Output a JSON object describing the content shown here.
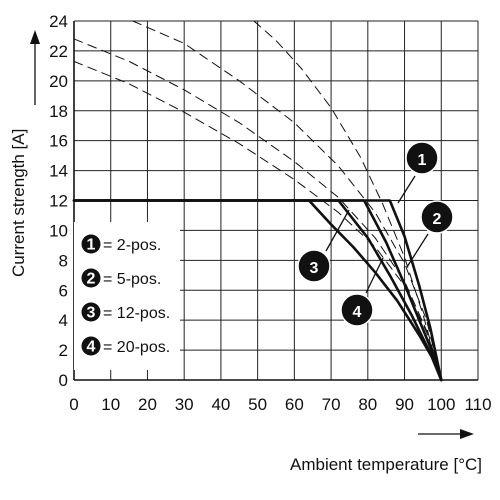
{
  "chart_data": {
    "type": "line",
    "xlabel": "Ambient temperature [°C]",
    "ylabel": "Current strength [A]",
    "xlim": [
      0,
      110
    ],
    "ylim": [
      0,
      24
    ],
    "x_ticks": [
      0,
      10,
      20,
      30,
      40,
      50,
      60,
      70,
      80,
      90,
      100,
      110
    ],
    "y_ticks": [
      0,
      2,
      4,
      6,
      8,
      10,
      12,
      14,
      16,
      18,
      20,
      22,
      24
    ],
    "grid": true,
    "legend": {
      "placement": "left-center",
      "entries": [
        {
          "badge": "1",
          "label": "= 2-pos."
        },
        {
          "badge": "2",
          "label": "= 5-pos."
        },
        {
          "badge": "3",
          "label": "= 12-pos."
        },
        {
          "badge": "4",
          "label": "= 20-pos."
        }
      ]
    },
    "series": [
      {
        "badge": "1",
        "style": "solid",
        "x": [
          0,
          86,
          90,
          94,
          97,
          100
        ],
        "y": [
          12,
          12,
          9.6,
          6.3,
          3.5,
          0
        ]
      },
      {
        "badge": "2",
        "style": "solid",
        "x": [
          0,
          79,
          85,
          90,
          95,
          98,
          100
        ],
        "y": [
          12,
          12,
          9.2,
          6.4,
          3.4,
          1.6,
          0
        ]
      },
      {
        "badge": "3",
        "style": "solid",
        "x": [
          0,
          72,
          80,
          86,
          92,
          97,
          100
        ],
        "y": [
          12,
          12,
          9.5,
          7.0,
          4.3,
          1.8,
          0
        ]
      },
      {
        "badge": "4",
        "style": "solid",
        "x": [
          0,
          64,
          70,
          76,
          82,
          88,
          94,
          98,
          100
        ],
        "y": [
          12,
          12,
          10.4,
          8.9,
          7.2,
          5.3,
          3.0,
          1.3,
          0
        ]
      },
      {
        "badge": "1",
        "style": "dashed",
        "x": [
          49,
          55,
          62,
          70,
          78,
          84,
          90,
          95,
          100
        ],
        "y": [
          24,
          22.7,
          20.8,
          18.2,
          14.9,
          11.8,
          8.2,
          4.4,
          0
        ]
      },
      {
        "badge": "2",
        "style": "dashed",
        "x": [
          16,
          30,
          45,
          60,
          72,
          82,
          90,
          96,
          100
        ],
        "y": [
          24,
          22.5,
          20.0,
          17.2,
          14.3,
          11.2,
          7.8,
          4.0,
          0
        ]
      },
      {
        "badge": "3",
        "style": "dashed",
        "x": [
          0,
          15,
          30,
          45,
          60,
          72,
          82,
          90,
          96,
          100
        ],
        "y": [
          22.8,
          21.3,
          19.4,
          17.2,
          14.6,
          12.2,
          9.5,
          6.6,
          3.3,
          0
        ]
      },
      {
        "badge": "4",
        "style": "dashed",
        "x": [
          0,
          15,
          30,
          45,
          60,
          72,
          82,
          90,
          96,
          100
        ],
        "y": [
          21.3,
          19.8,
          17.9,
          15.8,
          13.4,
          11.2,
          8.9,
          6.3,
          3.2,
          0
        ]
      }
    ],
    "callouts": [
      {
        "badge": "1",
        "placement": "upper-right",
        "points_to_series": 0
      },
      {
        "badge": "2",
        "placement": "right",
        "points_to_series": 1
      },
      {
        "badge": "3",
        "placement": "left",
        "points_to_series": 2
      },
      {
        "badge": "4",
        "placement": "lower",
        "points_to_series": 3
      }
    ]
  }
}
